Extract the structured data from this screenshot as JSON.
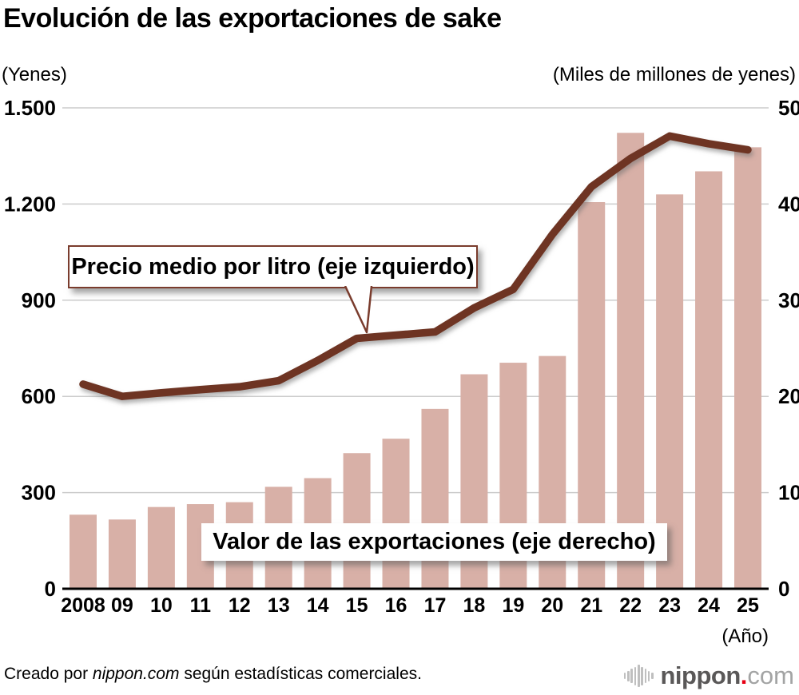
{
  "title": "Evolución de las exportaciones de sake",
  "left_axis_unit": "(Yenes)",
  "right_axis_unit": "(Miles de millones de yenes)",
  "x_axis_label": "(Año)",
  "callouts": {
    "price": "Precio medio por litro (eje izquierdo)",
    "value": "Valor de las exportaciones (eje derecho)"
  },
  "footer": {
    "prefix": "Creado por ",
    "brand": "nippon.com",
    "suffix": " según estadísticas comerciales."
  },
  "logo": {
    "name": "nippon",
    "dot": ".",
    "tld": "com"
  },
  "colors": {
    "bar": "#d8b0a7",
    "line": "#6e3423",
    "grid": "#cccccc",
    "axis": "#000000",
    "callout_border": "#7a3c2d",
    "logo_red": "#e60013",
    "logo_gray": "#5a5858",
    "logo_light_gray": "#a3a4a4"
  },
  "chart_data": {
    "type": "bar+line combo",
    "title": "Evolución de las exportaciones de sake",
    "categories": [
      "2008",
      "09",
      "10",
      "11",
      "12",
      "13",
      "14",
      "15",
      "16",
      "17",
      "18",
      "19",
      "20",
      "21",
      "22",
      "23",
      "24",
      "25"
    ],
    "x_axis_note": "(Año)",
    "grid": "horizontal only",
    "legend_position": "in-chart callout boxes",
    "left_axis": {
      "unit": "Yenes",
      "ticks": [
        "1.500",
        "1.200",
        "900",
        "600",
        "300",
        "0"
      ],
      "tick_values": [
        1500,
        1200,
        900,
        600,
        300,
        0
      ],
      "max": 1500,
      "min": 0
    },
    "right_axis": {
      "unit": "Miles de millones de yenes",
      "ticks": [
        "50",
        "40",
        "30",
        "20",
        "10",
        "0"
      ],
      "tick_values": [
        50,
        40,
        30,
        20,
        10,
        0
      ],
      "max": 50,
      "min": 0
    },
    "series": [
      {
        "name": "Precio medio por litro (eje izquierdo)",
        "type": "line",
        "axis": "left",
        "values": [
          638,
          600,
          611,
          621,
          630,
          649,
          712,
          781,
          791,
          801,
          876,
          934,
          1105,
          1254,
          1342,
          1412,
          1388,
          1369
        ]
      },
      {
        "name": "Valor de las exportaciones (eje derecho)",
        "type": "bar",
        "axis": "right",
        "values": [
          7.7,
          7.2,
          8.5,
          8.8,
          9.0,
          10.6,
          11.5,
          14.1,
          15.6,
          18.7,
          22.3,
          23.5,
          24.2,
          40.2,
          47.4,
          41.0,
          43.4,
          45.9
        ]
      }
    ]
  }
}
